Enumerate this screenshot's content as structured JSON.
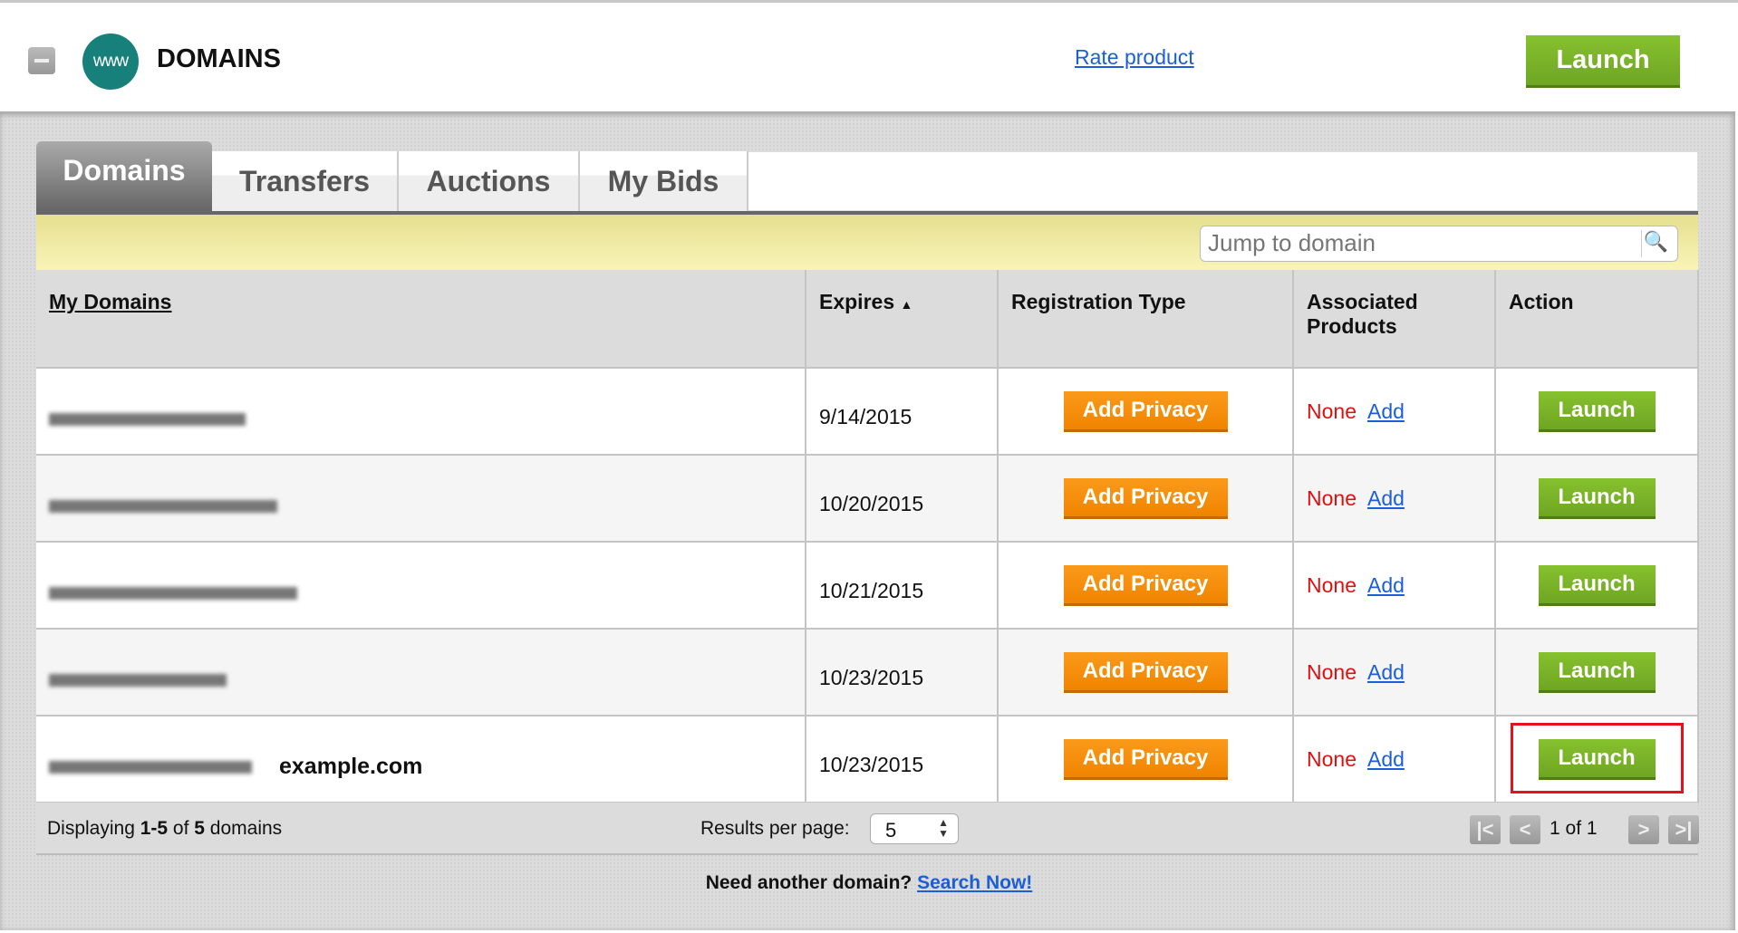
{
  "header": {
    "title": "DOMAINS",
    "logo_text": "www",
    "rate_link": "Rate product",
    "launch_label": "Launch"
  },
  "tabs": [
    {
      "label": "Domains",
      "active": true
    },
    {
      "label": "Transfers"
    },
    {
      "label": "Auctions"
    },
    {
      "label": "My Bids"
    }
  ],
  "search": {
    "placeholder": "Jump to domain",
    "icon": "search-icon"
  },
  "table": {
    "columns": [
      "My Domains",
      "Expires",
      "Registration Type",
      "Associated Products",
      "Action"
    ],
    "sort_indicator": "▲",
    "rows": [
      {
        "domain_note": "",
        "expires": "9/14/2015",
        "registration": "Add Privacy",
        "products": "None",
        "add": "Add",
        "action": "Launch"
      },
      {
        "domain_note": "",
        "expires": "10/20/2015",
        "registration": "Add Privacy",
        "products": "None",
        "add": "Add",
        "action": "Launch"
      },
      {
        "domain_note": "",
        "expires": "10/21/2015",
        "registration": "Add Privacy",
        "products": "None",
        "add": "Add",
        "action": "Launch"
      },
      {
        "domain_note": "",
        "expires": "10/23/2015",
        "registration": "Add Privacy",
        "products": "None",
        "add": "Add",
        "action": "Launch"
      },
      {
        "domain_note": "example.com",
        "expires": "10/23/2015",
        "registration": "Add Privacy",
        "products": "None",
        "add": "Add",
        "action": "Launch",
        "highlighted": true
      }
    ]
  },
  "footer": {
    "displaying_prefix": "Displaying ",
    "range": "1-5",
    "of": " of ",
    "total": "5",
    "suffix": " domains",
    "rpp_label": "Results per page:",
    "rpp_value": "5",
    "page_info": "1 of 1"
  },
  "bottom": {
    "prompt": "Need another domain?",
    "link": "Search Now!"
  },
  "colors": {
    "launch": "#7ab629",
    "privacy": "#f48a08",
    "search_bar": "#f4eea8",
    "highlight": "#e8101a",
    "none": "#e01010",
    "link": "#1a5fd6"
  }
}
